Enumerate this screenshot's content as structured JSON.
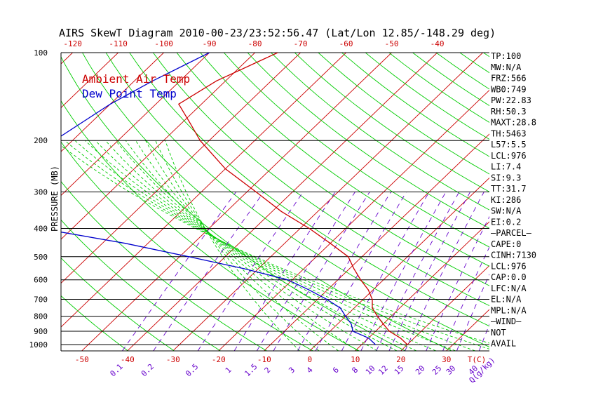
{
  "chart_data": {
    "type": "line",
    "title": "AIRS SkewT Diagram 2010-00-23/23:52:56.47 (Lat/Lon 12.85/-148.29 deg)",
    "ylabel": "PRESSURE (MB)",
    "y_scale": "log",
    "ylim": [
      1050,
      100
    ],
    "pressure_ticks": [
      {
        "label": "100",
        "p": 100
      },
      {
        "label": "200",
        "p": 200
      },
      {
        "label": "300",
        "p": 300
      },
      {
        "label": "400",
        "p": 400
      },
      {
        "label": "500",
        "p": 500
      },
      {
        "label": "600",
        "p": 600
      },
      {
        "label": "700",
        "p": 700
      },
      {
        "label": "800",
        "p": 800
      },
      {
        "label": "900",
        "p": 900
      },
      {
        "label": "1000",
        "p": 1000
      }
    ],
    "top_temperature_ticks": [
      "-120",
      "-110",
      "-100",
      "-90",
      "-80",
      "-70",
      "-60",
      "-50",
      "-40"
    ],
    "bottom_temperature_ticks": [
      "-50",
      "-40",
      "-30",
      "-20",
      "-10",
      "0",
      "10",
      "20",
      "30",
      "T(C)"
    ],
    "mixing_ratio_labels": [
      "0.1",
      "0.2",
      "0.5",
      "1",
      "1.5",
      "2",
      "3",
      "4",
      "6",
      "8",
      "10",
      "12",
      "15",
      "20",
      "25",
      "30",
      "40",
      "Q(g/kg)"
    ],
    "series": [
      {
        "name": "Ambient Air Temp",
        "color": "#cc0000",
        "points": [
          {
            "p": 100,
            "t": -75
          },
          {
            "p": 125,
            "t": -82
          },
          {
            "p": 150,
            "t": -85
          },
          {
            "p": 175,
            "t": -78
          },
          {
            "p": 200,
            "t": -72
          },
          {
            "p": 250,
            "t": -60
          },
          {
            "p": 300,
            "t": -48
          },
          {
            "p": 350,
            "t": -38
          },
          {
            "p": 400,
            "t": -28
          },
          {
            "p": 450,
            "t": -20
          },
          {
            "p": 500,
            "t": -13
          },
          {
            "p": 550,
            "t": -9
          },
          {
            "p": 600,
            "t": -5
          },
          {
            "p": 650,
            "t": -1
          },
          {
            "p": 700,
            "t": 2
          },
          {
            "p": 750,
            "t": 4
          },
          {
            "p": 800,
            "t": 7
          },
          {
            "p": 850,
            "t": 10
          },
          {
            "p": 900,
            "t": 13
          },
          {
            "p": 950,
            "t": 17
          },
          {
            "p": 1000,
            "t": 20
          }
        ]
      },
      {
        "name": "Dew Point Temp",
        "color": "#0000cc",
        "points": [
          {
            "p": 100,
            "t": -90
          },
          {
            "p": 125,
            "t": -96
          },
          {
            "p": 150,
            "t": -100
          },
          {
            "p": 200,
            "t": -104
          },
          {
            "p": 250,
            "t": -102
          },
          {
            "p": 300,
            "t": -100
          },
          {
            "p": 350,
            "t": -95
          },
          {
            "p": 400,
            "t": -87
          },
          {
            "p": 450,
            "t": -65
          },
          {
            "p": 500,
            "t": -48
          },
          {
            "p": 550,
            "t": -33
          },
          {
            "p": 600,
            "t": -21
          },
          {
            "p": 650,
            "t": -14
          },
          {
            "p": 700,
            "t": -8
          },
          {
            "p": 750,
            "t": -3
          },
          {
            "p": 800,
            "t": 0
          },
          {
            "p": 850,
            "t": 3
          },
          {
            "p": 900,
            "t": 5
          },
          {
            "p": 950,
            "t": 10
          },
          {
            "p": 1000,
            "t": 13
          }
        ]
      }
    ],
    "legend": {
      "placement": "top-left",
      "entries": [
        "Ambient Air Temp",
        "Dew Point Temp"
      ]
    },
    "indices": [
      "TP:100",
      "MW:N/A",
      "FRZ:566",
      "WB0:749",
      "PW:22.83",
      "RH:50.3",
      "MAXT:28.8",
      "TH:5463",
      "L57:5.5",
      "LCL:976",
      "LI:7.4",
      "SI:9.3",
      "TT:31.7",
      "KI:286",
      "SW:N/A",
      "EI:0.2",
      "—PARCEL—",
      "CAPE:0",
      "CINH:7130",
      "LCL:976",
      "CAP:0.0",
      "LFC:N/A",
      "EL:N/A",
      "MPL:N/A",
      "—WIND—",
      "NOT",
      "AVAIL"
    ],
    "colors": {
      "isotherm": "#cc0000",
      "dry_adiabat": "#00cc00",
      "moist_adiabat": "#00cc00",
      "mixing_ratio": "#6600cc",
      "axis_text": "#cc0000",
      "mixing_text": "#6600cc"
    }
  }
}
